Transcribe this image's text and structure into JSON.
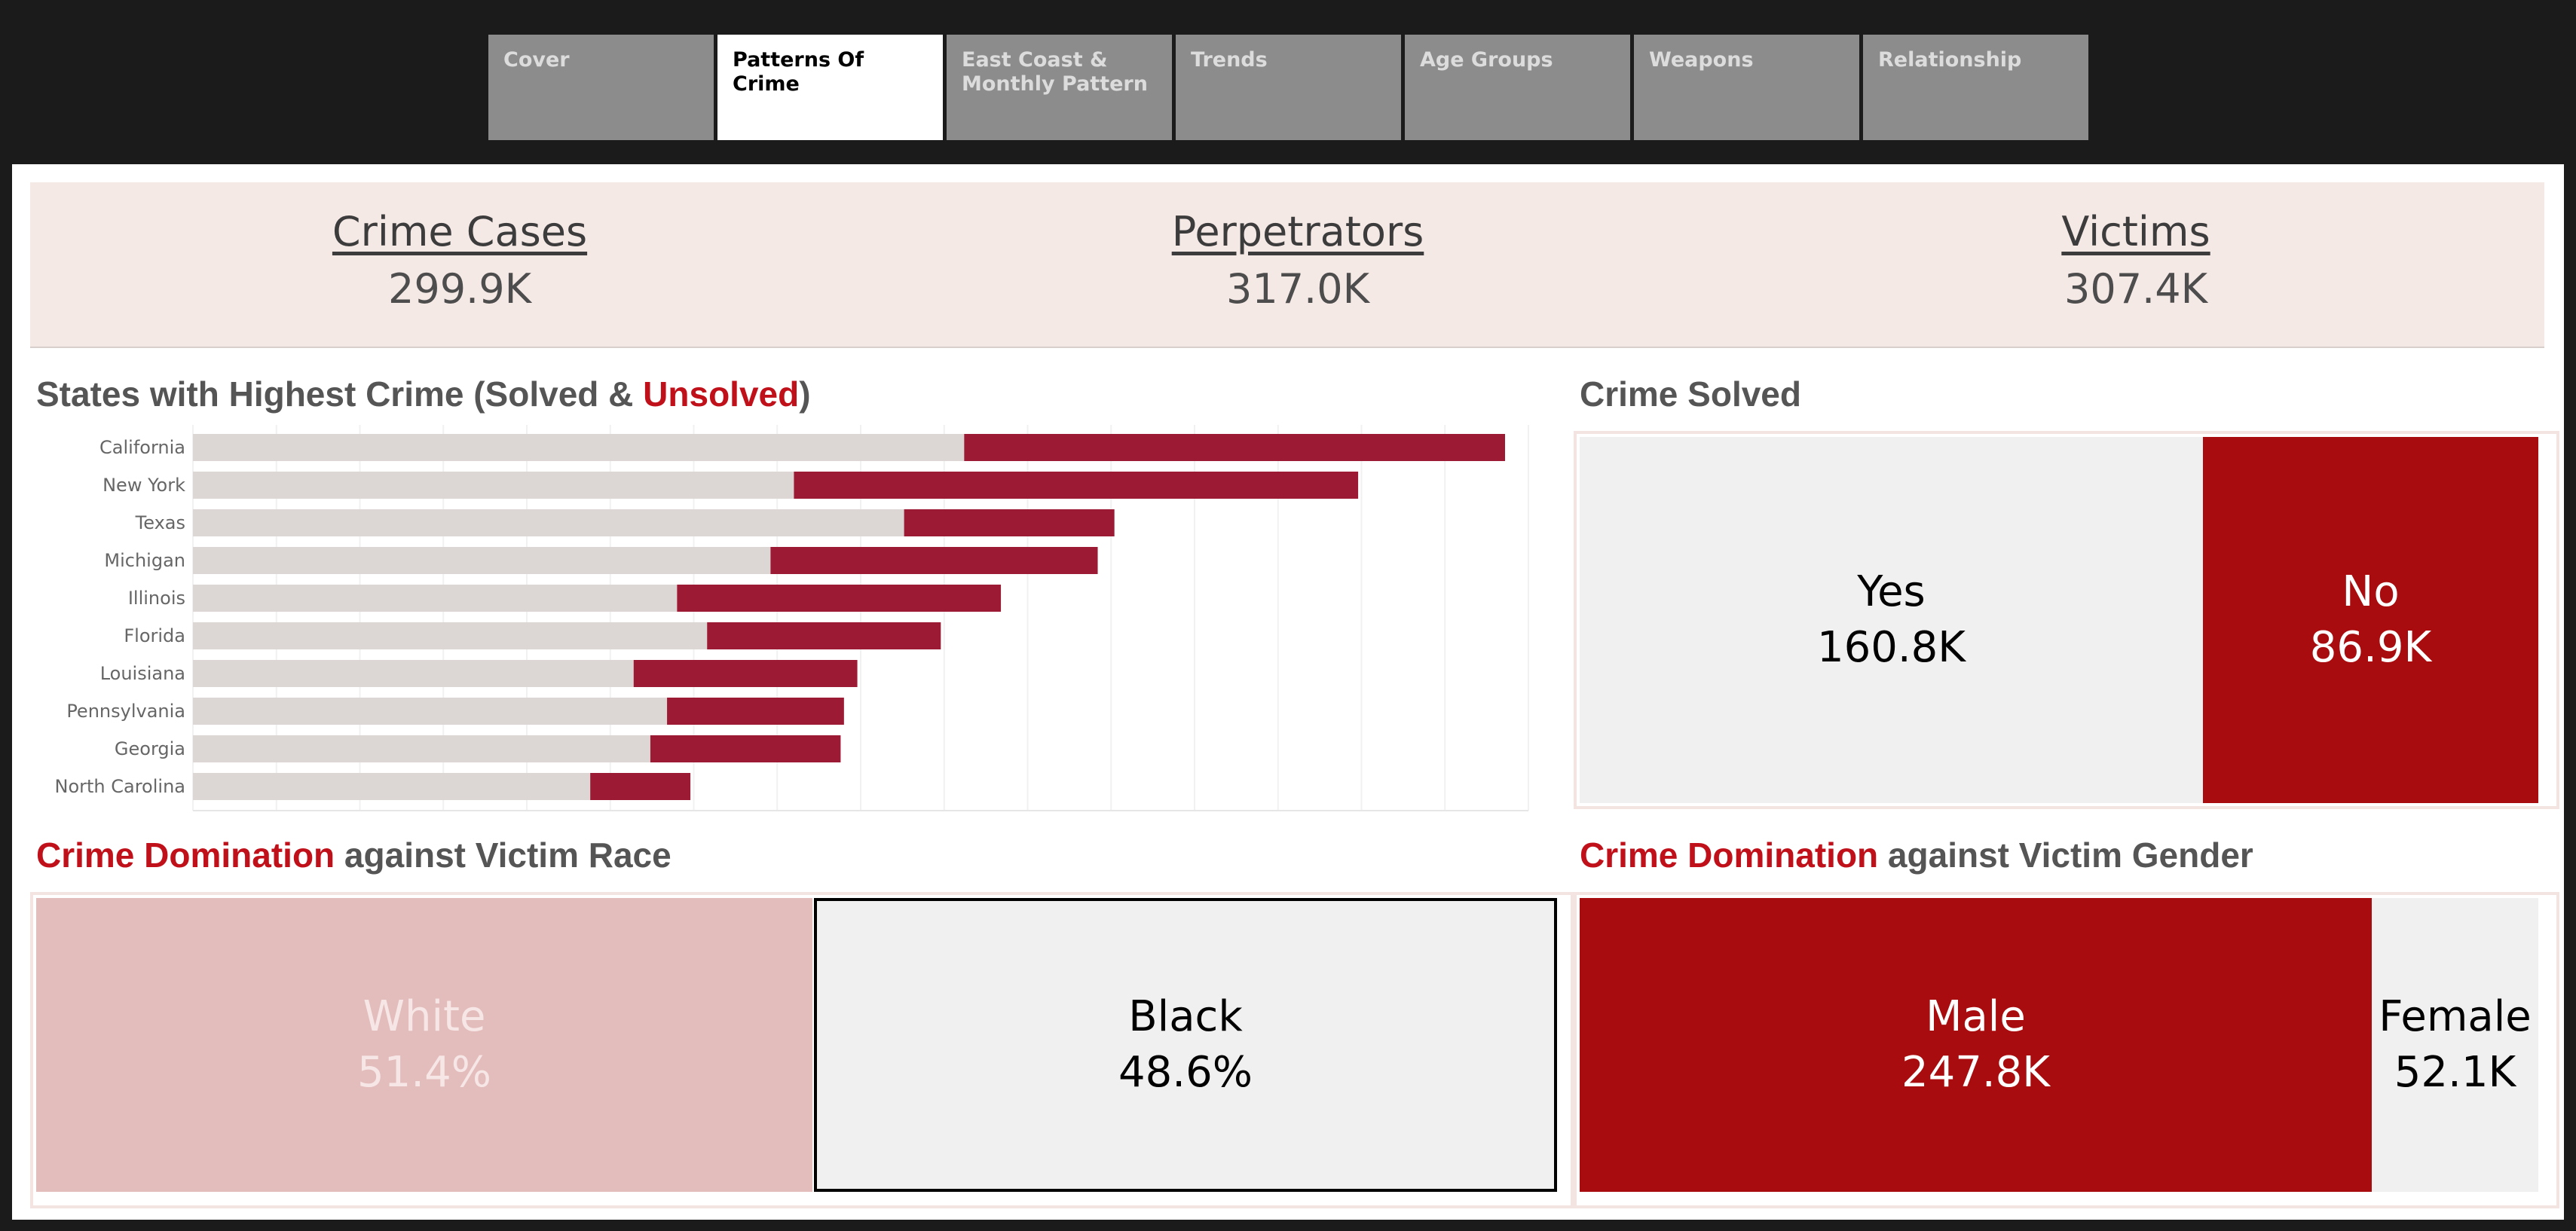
{
  "tabs": [
    {
      "label": "Cover",
      "active": false
    },
    {
      "label": "Patterns Of Crime",
      "active": true
    },
    {
      "label": "East Coast &\nMonthly Pattern",
      "active": false
    },
    {
      "label": "Trends",
      "active": false
    },
    {
      "label": "Age Groups",
      "active": false
    },
    {
      "label": "Weapons",
      "active": false
    },
    {
      "label": "Relationship",
      "active": false
    }
  ],
  "kpis": [
    {
      "label": "Crime Cases",
      "value": "299.9K"
    },
    {
      "label": "Perpetrators",
      "value": "317.0K"
    },
    {
      "label": "Victims",
      "value": "307.4K"
    }
  ],
  "titles": {
    "states_prefix": "States with Highest Crime (Solved & ",
    "states_accent": "Unsolved",
    "states_suffix": ")",
    "solved": "Crime Solved",
    "race_accent": "Crime Domination",
    "race_rest": " against Victim Race",
    "gender_accent": "Crime Domination",
    "gender_rest": " against Victim Gender"
  },
  "colors": {
    "solved_bar": "#dcd6d4",
    "unsolved_bar": "#9c1a33",
    "accent_text": "#c0111b",
    "no_tile": "#a80c0e",
    "yes_tile": "#f0f0f0",
    "white_tile": "#e3bcbc",
    "black_tile": "#f0f0f0",
    "male_tile": "#a80c0e",
    "female_tile": "#f0f0f0"
  },
  "chart_data": [
    {
      "type": "bar",
      "orientation": "horizontal",
      "stacked": true,
      "title": "States with Highest Crime (Solved & Unsolved)",
      "categories": [
        "California",
        "New York",
        "Texas",
        "Michigan",
        "Illinois",
        "Florida",
        "Louisiana",
        "Pennsylvania",
        "Georgia",
        "North Carolina"
      ],
      "series": [
        {
          "values": [
            23.1,
            18.0,
            21.3,
            17.3,
            14.5,
            15.4,
            13.2,
            14.2,
            13.7,
            11.9
          ]
        },
        {
          "name": "Unsolved",
          "values": [
            16.2,
            16.9,
            6.3,
            9.8,
            9.7,
            7.0,
            6.7,
            5.3,
            5.7,
            3.0
          ]
        }
      ],
      "xlim": [
        0,
        40
      ],
      "grid": true
    },
    {
      "type": "treemap",
      "title": "Crime Solved",
      "items": [
        {
          "label": "Yes",
          "display": "160.8K",
          "value": 160.8
        },
        {
          "label": "No",
          "display": "86.9K",
          "value": 86.9
        }
      ]
    },
    {
      "type": "treemap",
      "title": "Crime Domination against Victim Race",
      "items": [
        {
          "label": "White",
          "display": "51.4%",
          "value": 51.4
        },
        {
          "label": "Black",
          "display": "48.6%",
          "value": 48.6
        }
      ]
    },
    {
      "type": "treemap",
      "title": "Crime Domination against Victim Gender",
      "items": [
        {
          "label": "Male",
          "display": "247.8K",
          "value": 247.8
        },
        {
          "label": "Female",
          "display": "52.1K",
          "value": 52.1
        }
      ]
    }
  ]
}
